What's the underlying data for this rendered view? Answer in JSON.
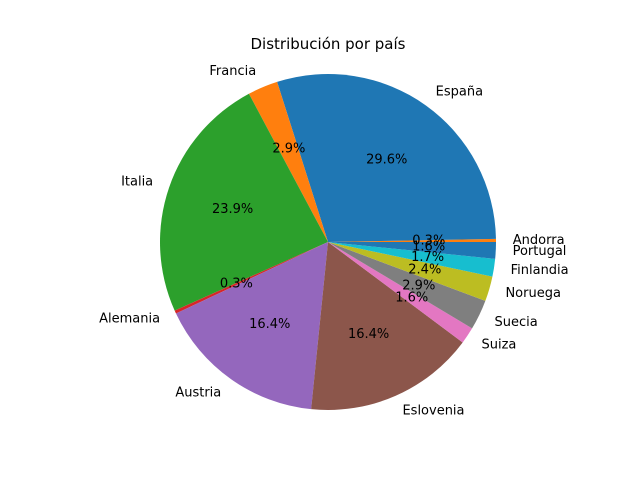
{
  "chart_data": {
    "type": "pie",
    "title": "Distribución por país",
    "start_angle_deg": 0,
    "direction": "counterclockwise",
    "slices": [
      {
        "label": "Andorra",
        "value": 0.3,
        "value_label": "0.3%",
        "color": "#ff7f0e"
      },
      {
        "label": "España",
        "value": 29.6,
        "value_label": "29.6%",
        "color": "#1f77b4"
      },
      {
        "label": "Francia",
        "value": 2.9,
        "value_label": "2.9%",
        "color": "#ff7f0e"
      },
      {
        "label": "Italia",
        "value": 23.9,
        "value_label": "23.9%",
        "color": "#2ca02c"
      },
      {
        "label": "Alemania",
        "value": 0.3,
        "value_label": "0.3%",
        "color": "#d62728"
      },
      {
        "label": "Austria",
        "value": 16.4,
        "value_label": "16.4%",
        "color": "#9467bd"
      },
      {
        "label": "Eslovenia",
        "value": 16.4,
        "value_label": "16.4%",
        "color": "#8c564b"
      },
      {
        "label": "Suiza",
        "value": 1.6,
        "value_label": "1.6%",
        "color": "#e377c2"
      },
      {
        "label": "Suecia",
        "value": 2.9,
        "value_label": "2.9%",
        "color": "#7f7f7f"
      },
      {
        "label": "Noruega",
        "value": 2.4,
        "value_label": "2.4%",
        "color": "#bcbd22"
      },
      {
        "label": "Finlandia",
        "value": 1.7,
        "value_label": "1.7%",
        "color": "#17becf"
      },
      {
        "label": "Portugal",
        "value": 1.6,
        "value_label": "1.6%",
        "color": "#1f77b4"
      }
    ]
  }
}
